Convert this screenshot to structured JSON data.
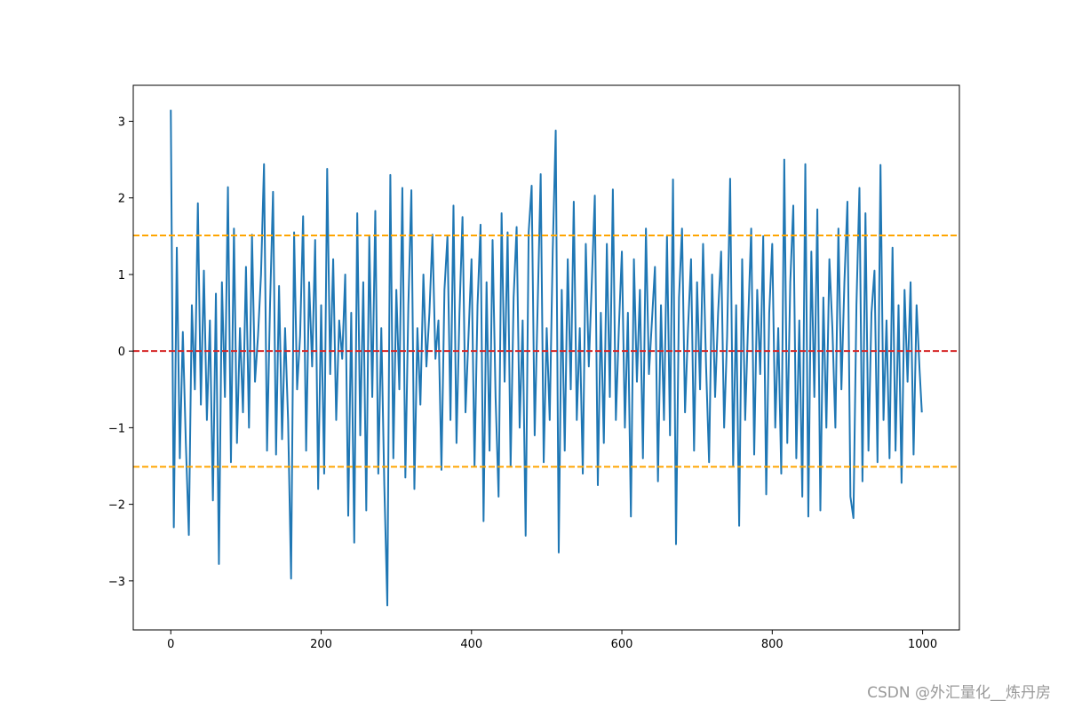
{
  "chart_data": {
    "type": "line",
    "x": [
      0,
      4,
      8,
      12,
      16,
      20,
      24,
      28,
      32,
      36,
      40,
      44,
      48,
      52,
      56,
      60,
      64,
      68,
      72,
      76,
      80,
      84,
      88,
      92,
      96,
      100,
      104,
      108,
      112,
      116,
      120,
      124,
      128,
      132,
      136,
      140,
      144,
      148,
      152,
      156,
      160,
      164,
      168,
      172,
      176,
      180,
      184,
      188,
      192,
      196,
      200,
      204,
      208,
      212,
      216,
      220,
      224,
      228,
      232,
      236,
      240,
      244,
      248,
      252,
      256,
      260,
      264,
      268,
      272,
      276,
      280,
      284,
      288,
      292,
      296,
      300,
      304,
      308,
      312,
      316,
      320,
      324,
      328,
      332,
      336,
      340,
      344,
      348,
      352,
      356,
      360,
      364,
      368,
      372,
      376,
      380,
      384,
      388,
      392,
      396,
      400,
      404,
      408,
      412,
      416,
      420,
      424,
      428,
      432,
      436,
      440,
      444,
      448,
      452,
      456,
      460,
      464,
      468,
      472,
      476,
      480,
      484,
      488,
      492,
      496,
      500,
      504,
      508,
      512,
      516,
      520,
      524,
      528,
      532,
      536,
      540,
      544,
      548,
      552,
      556,
      560,
      564,
      568,
      572,
      576,
      580,
      584,
      588,
      592,
      596,
      600,
      604,
      608,
      612,
      616,
      620,
      624,
      628,
      632,
      636,
      640,
      644,
      648,
      652,
      656,
      660,
      664,
      668,
      672,
      676,
      680,
      684,
      688,
      692,
      696,
      700,
      704,
      708,
      712,
      716,
      720,
      724,
      728,
      732,
      736,
      740,
      744,
      748,
      752,
      756,
      760,
      764,
      768,
      772,
      776,
      780,
      784,
      788,
      792,
      796,
      800,
      804,
      808,
      812,
      816,
      820,
      824,
      828,
      832,
      836,
      840,
      844,
      848,
      852,
      856,
      860,
      864,
      868,
      872,
      876,
      880,
      884,
      888,
      892,
      896,
      900,
      904,
      908,
      912,
      916,
      920,
      924,
      928,
      932,
      936,
      940,
      944,
      948,
      952,
      956,
      960,
      964,
      968,
      972,
      976,
      980,
      984,
      988,
      992,
      996,
      999
    ],
    "series": [
      {
        "color": "#1f77b4",
        "values": [
          3.15,
          -2.3,
          1.35,
          -1.4,
          0.25,
          -1.2,
          -2.4,
          0.6,
          -0.5,
          1.93,
          -0.7,
          1.05,
          -0.9,
          0.4,
          -1.95,
          0.75,
          -2.78,
          0.9,
          -0.6,
          2.14,
          -1.45,
          1.6,
          -1.2,
          0.3,
          -0.8,
          1.1,
          -1.0,
          1.52,
          -0.4,
          0.2,
          1.0,
          2.44,
          -1.3,
          0.6,
          2.08,
          -1.35,
          0.85,
          -1.15,
          0.3,
          -0.9,
          -2.97,
          1.55,
          -0.5,
          0.2,
          1.76,
          -1.3,
          0.9,
          -0.2,
          1.45,
          -1.8,
          0.6,
          -1.6,
          2.38,
          -0.3,
          1.2,
          -0.9,
          0.4,
          -0.1,
          1.0,
          -2.15,
          0.5,
          -2.5,
          1.8,
          -1.1,
          0.9,
          -2.08,
          1.5,
          -0.6,
          1.83,
          -1.6,
          0.3,
          -1.75,
          -3.32,
          2.3,
          -1.4,
          0.8,
          -0.5,
          2.13,
          -1.65,
          0.6,
          2.1,
          -1.8,
          0.3,
          -0.7,
          1.0,
          -0.2,
          0.5,
          1.52,
          -0.1,
          0.4,
          -1.55,
          0.8,
          1.5,
          -0.9,
          1.9,
          -1.2,
          0.5,
          1.75,
          -0.8,
          0.2,
          1.2,
          -1.5,
          0.6,
          1.65,
          -2.22,
          0.9,
          -1.3,
          1.45,
          -0.6,
          -1.9,
          1.8,
          -0.4,
          1.55,
          -1.5,
          0.7,
          1.62,
          -1.0,
          0.4,
          -2.41,
          1.55,
          2.16,
          -1.1,
          0.6,
          2.31,
          -1.45,
          0.3,
          -0.9,
          1.3,
          2.88,
          -2.63,
          0.8,
          -1.3,
          1.2,
          -0.5,
          1.95,
          -0.9,
          0.3,
          -1.6,
          1.4,
          -0.2,
          0.9,
          2.03,
          -1.75,
          0.5,
          -1.2,
          1.4,
          -0.6,
          2.11,
          -0.9,
          0.3,
          1.3,
          -1.0,
          0.5,
          -2.16,
          1.2,
          -0.4,
          0.8,
          -1.4,
          1.6,
          -0.3,
          0.4,
          1.1,
          -1.7,
          0.6,
          -0.9,
          1.5,
          -1.1,
          2.24,
          -2.52,
          0.7,
          1.6,
          -0.8,
          0.3,
          1.2,
          -1.3,
          0.9,
          -0.5,
          1.4,
          -0.2,
          -1.45,
          1.0,
          -0.6,
          0.5,
          1.3,
          -1.0,
          0.2,
          2.25,
          -1.5,
          0.6,
          -2.28,
          1.2,
          -0.9,
          0.4,
          1.6,
          -1.35,
          0.8,
          -0.3,
          1.5,
          -1.87,
          0.5,
          1.4,
          -1.0,
          0.3,
          -1.6,
          2.5,
          -1.2,
          0.9,
          1.9,
          -1.4,
          0.4,
          -1.9,
          2.44,
          -2.16,
          1.3,
          -0.6,
          1.85,
          -2.08,
          0.7,
          -1.0,
          1.2,
          0.3,
          -1.0,
          1.6,
          -0.5,
          0.9,
          1.95,
          -1.9,
          -2.18,
          0.6,
          2.13,
          -1.7,
          1.8,
          -1.3,
          0.5,
          1.05,
          -1.45,
          2.43,
          -0.9,
          0.4,
          -1.4,
          1.35,
          -1.3,
          0.6,
          -1.72,
          0.8,
          -0.4,
          0.9,
          -1.35,
          0.6,
          -0.25,
          -0.8
        ]
      }
    ],
    "hlines": [
      {
        "value": 1.51,
        "color": "#ffa500"
      },
      {
        "value": 0,
        "color": "#d62728"
      },
      {
        "value": -1.51,
        "color": "#ffa500"
      }
    ],
    "xlim": [
      -49.95,
      1048.95
    ],
    "ylim": [
      -3.64,
      3.47
    ],
    "xticks": [
      0,
      200,
      400,
      600,
      800,
      1000
    ],
    "yticks": [
      {
        "value": -3,
        "label": "−3"
      },
      {
        "value": -2,
        "label": "−2"
      },
      {
        "value": -1,
        "label": "−1"
      },
      0,
      1,
      2,
      3
    ],
    "watermark": "CSDN @外汇量化__炼丹房"
  }
}
